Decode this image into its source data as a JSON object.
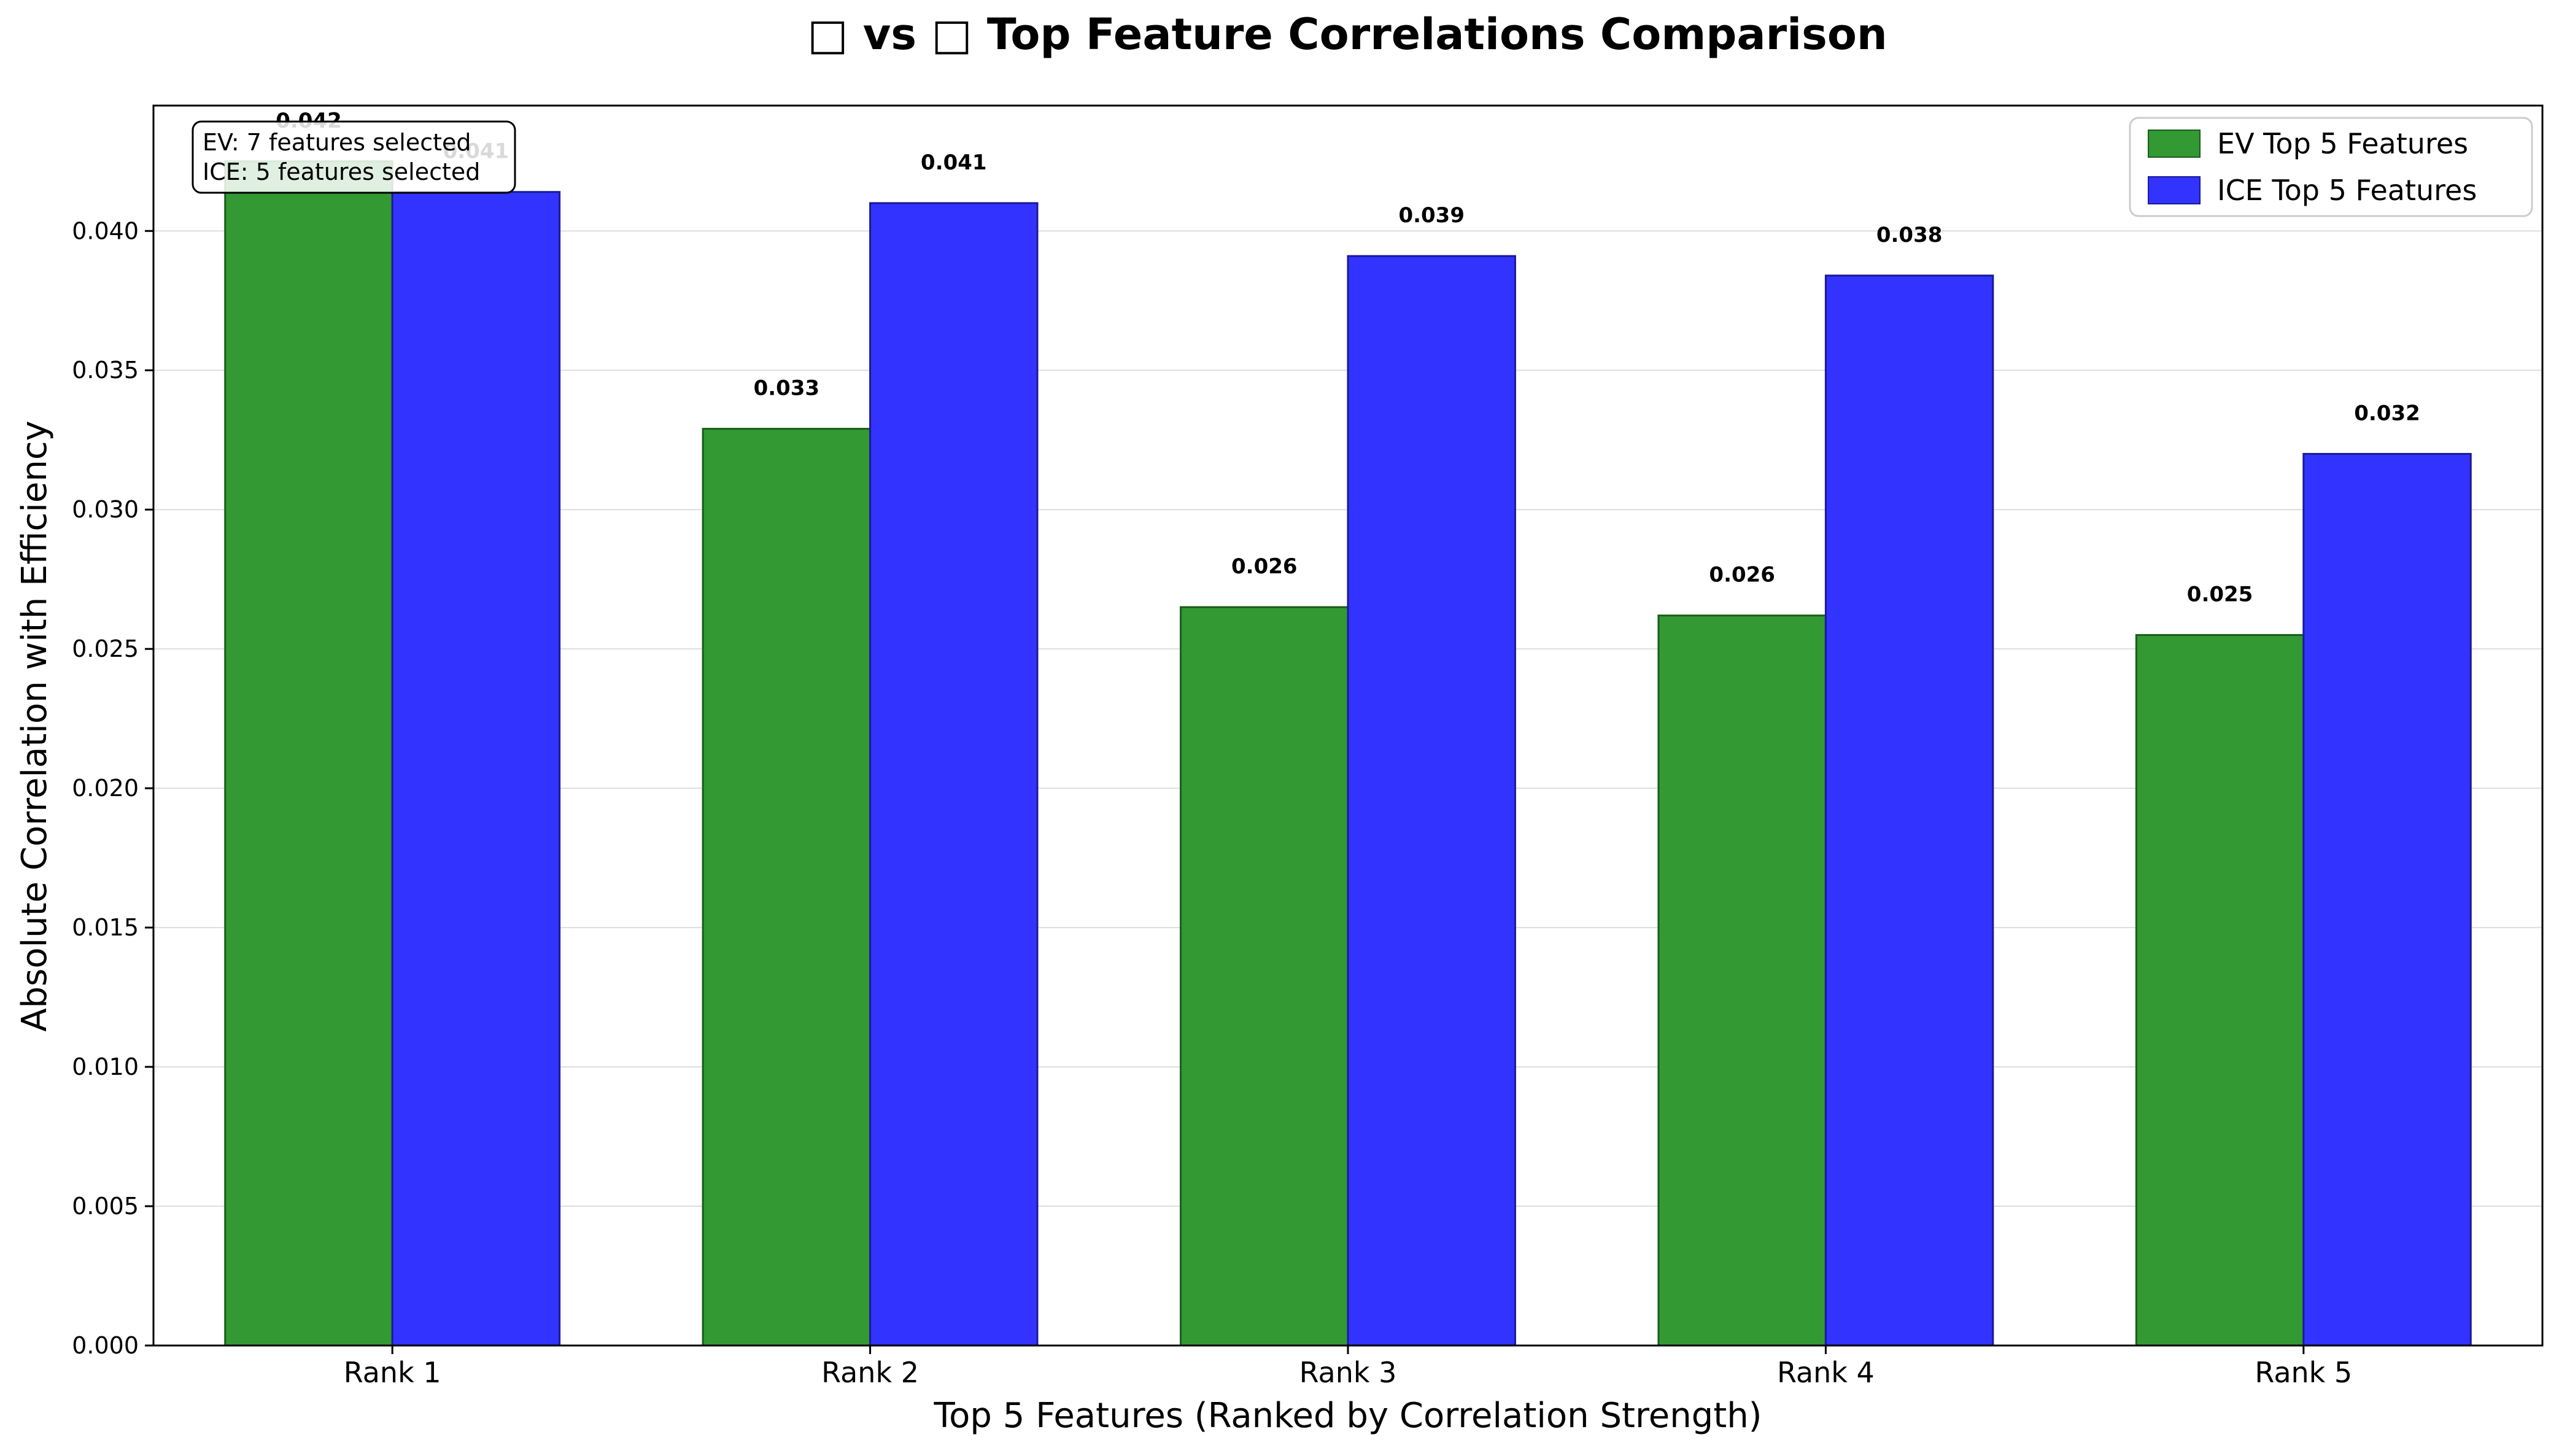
{
  "chart_data": {
    "type": "bar",
    "title": "□ vs □ Top Feature Correlations Comparison",
    "xlabel": "Top 5 Features (Ranked by Correlation Strength)",
    "ylabel": "Absolute Correlation with Efficiency",
    "categories": [
      "Rank 1",
      "Rank 2",
      "Rank 3",
      "Rank 4",
      "Rank 5"
    ],
    "ylim": [
      0,
      0.0445
    ],
    "yticks": [
      "0.000",
      "0.005",
      "0.010",
      "0.015",
      "0.020",
      "0.025",
      "0.030",
      "0.035",
      "0.040"
    ],
    "grid": "horizontal",
    "legend_position": "top-right",
    "series": [
      {
        "name": "EV Top 5 Features",
        "color": "#339933",
        "values": [
          0.0425,
          0.0329,
          0.0265,
          0.0262,
          0.0255
        ],
        "labels": [
          "0.042",
          "0.033",
          "0.026",
          "0.026",
          "0.025"
        ]
      },
      {
        "name": "ICE Top 5 Features",
        "color": "#3333ff",
        "values": [
          0.0414,
          0.041,
          0.0391,
          0.0384,
          0.032
        ],
        "labels": [
          "0.041",
          "0.041",
          "0.039",
          "0.038",
          "0.032"
        ]
      }
    ],
    "annotation": {
      "lines": [
        "EV: 7 features selected",
        "ICE: 5 features selected"
      ]
    }
  }
}
